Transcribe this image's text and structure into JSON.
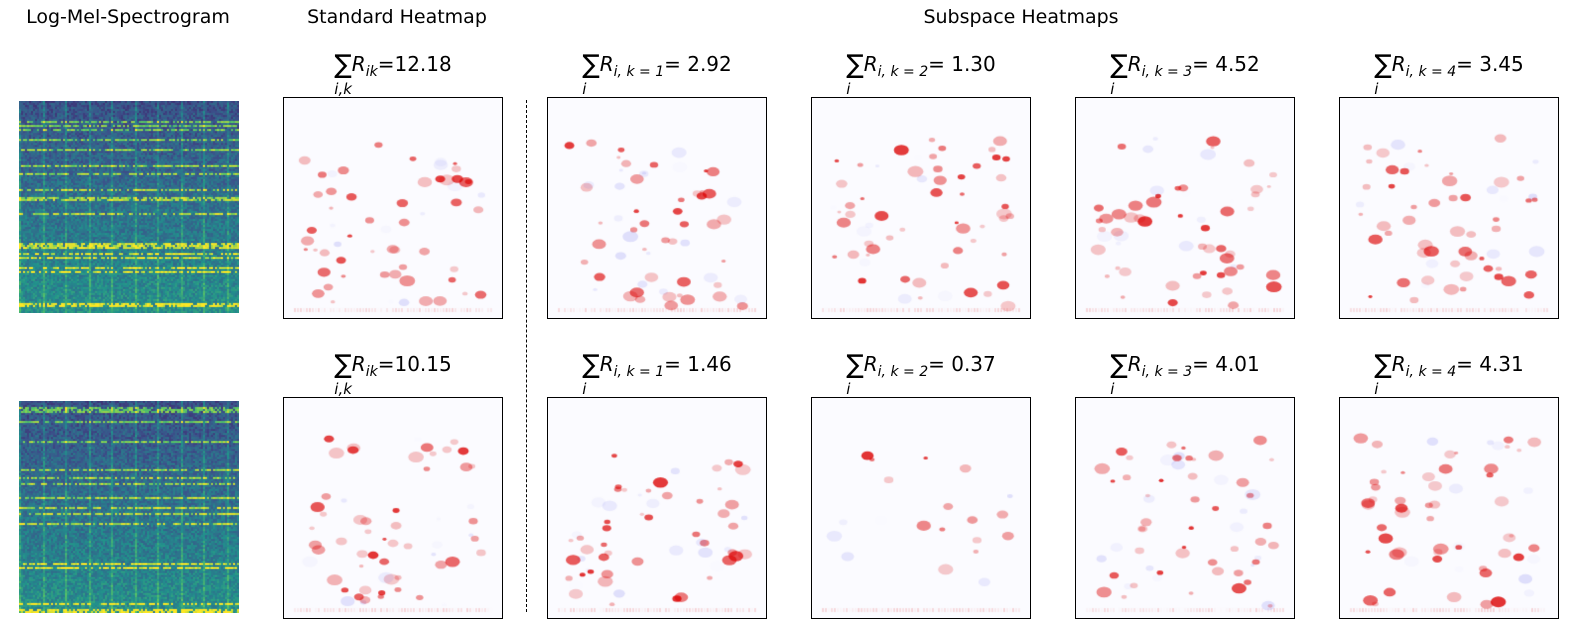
{
  "titles": {
    "spectrogram": "Log-Mel-Spectrogram",
    "standard": "Standard Heatmap",
    "subspace": "Subspace Heatmaps"
  },
  "colormaps": {
    "spectrogram": "viridis",
    "heatmap": "bwr",
    "positive": "#d00000",
    "negative": "#3030e0"
  },
  "rows": [
    {
      "panels": [
        {
          "sum_sub": "i,k",
          "r_sub": "ik",
          "value": "=12.18"
        },
        {
          "sum_sub": "i",
          "r_sub": "i, k = 1",
          "value": "= 2.92"
        },
        {
          "sum_sub": "i",
          "r_sub": "i, k = 2",
          "value": "= 1.30"
        },
        {
          "sum_sub": "i",
          "r_sub": "i, k = 3",
          "value": "= 4.52"
        },
        {
          "sum_sub": "i",
          "r_sub": "i, k = 4",
          "value": "= 3.45"
        }
      ]
    },
    {
      "panels": [
        {
          "sum_sub": "i,k",
          "r_sub": "ik",
          "value": "=10.15"
        },
        {
          "sum_sub": "i",
          "r_sub": "i, k = 1",
          "value": "= 1.46"
        },
        {
          "sum_sub": "i",
          "r_sub": "i, k = 2",
          "value": "= 0.37"
        },
        {
          "sum_sub": "i",
          "r_sub": "i, k = 3",
          "value": "= 4.01"
        },
        {
          "sum_sub": "i",
          "r_sub": "i, k = 4",
          "value": "= 4.31"
        }
      ]
    }
  ]
}
